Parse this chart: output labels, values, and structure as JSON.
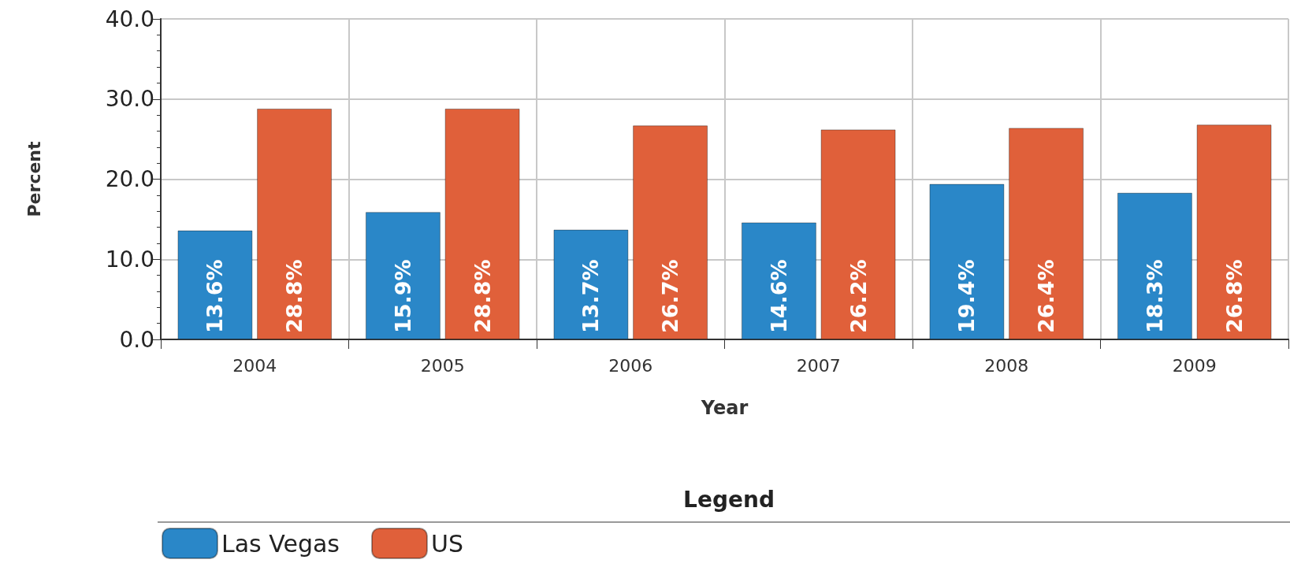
{
  "chart_data": {
    "type": "bar",
    "xlabel": "Year",
    "ylabel": "Percent",
    "legend_title": "Legend",
    "categories": [
      "2004",
      "2005",
      "2006",
      "2007",
      "2008",
      "2009"
    ],
    "series": [
      {
        "name": "Las Vegas",
        "color": "#2a87c8",
        "values": [
          13.6,
          15.9,
          13.7,
          14.6,
          19.4,
          18.3
        ],
        "value_labels": [
          "13.6%",
          "15.9%",
          "13.7%",
          "14.6%",
          "19.4%",
          "18.3%"
        ]
      },
      {
        "name": "US",
        "color": "#e0603a",
        "values": [
          28.8,
          28.8,
          26.7,
          26.2,
          26.4,
          26.8
        ],
        "value_labels": [
          "28.8%",
          "28.8%",
          "26.7%",
          "26.2%",
          "26.4%",
          "26.8%"
        ]
      }
    ],
    "ylim": [
      0,
      40
    ],
    "yticks": [
      {
        "value": 0,
        "label": "0.0"
      },
      {
        "value": 10,
        "label": "10.0"
      },
      {
        "value": 20,
        "label": "20.0"
      },
      {
        "value": 30,
        "label": "30.0"
      },
      {
        "value": 40,
        "label": "40.0"
      }
    ],
    "grid": true,
    "legend": "bottom"
  }
}
